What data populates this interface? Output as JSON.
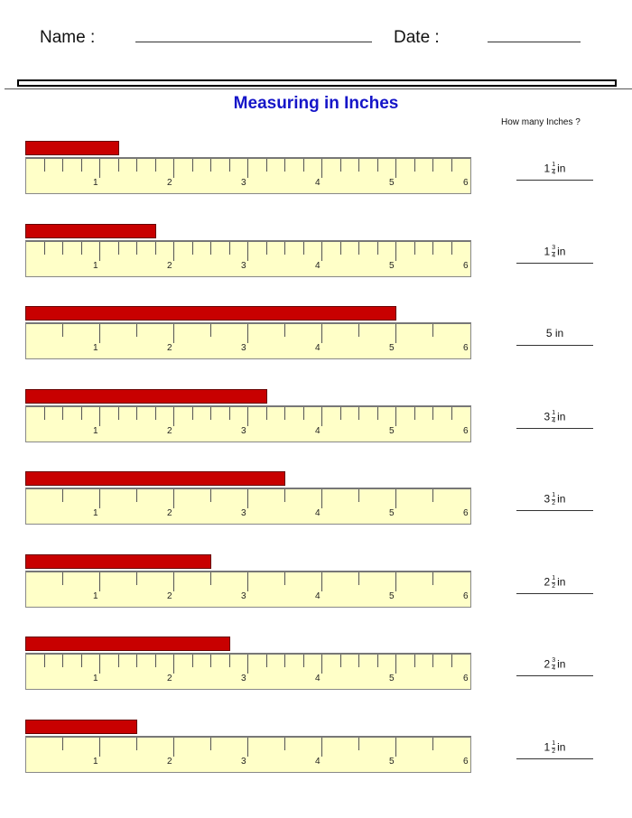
{
  "header": {
    "name_label": "Name :",
    "date_label": "Date :"
  },
  "title": "Measuring in Inches",
  "question": "How many Inches ?",
  "unit": "in",
  "ruler_numbers": [
    "1",
    "2",
    "3",
    "4",
    "5",
    "6"
  ],
  "colors": {
    "bar": "#c80000",
    "ruler": "#ffffc8",
    "title": "#1515c8"
  },
  "rows": [
    {
      "length_in": 1.25,
      "ticks": "quarter",
      "whole": "1",
      "num": "1",
      "den": "4"
    },
    {
      "length_in": 1.75,
      "ticks": "quarter",
      "whole": "1",
      "num": "3",
      "den": "4"
    },
    {
      "length_in": 5,
      "ticks": "half",
      "whole": "5",
      "num": "",
      "den": ""
    },
    {
      "length_in": 3.25,
      "ticks": "quarter",
      "whole": "3",
      "num": "1",
      "den": "4"
    },
    {
      "length_in": 3.5,
      "ticks": "half",
      "whole": "3",
      "num": "1",
      "den": "2"
    },
    {
      "length_in": 2.5,
      "ticks": "half",
      "whole": "2",
      "num": "1",
      "den": "2"
    },
    {
      "length_in": 2.75,
      "ticks": "quarter",
      "whole": "2",
      "num": "3",
      "den": "4"
    },
    {
      "length_in": 1.5,
      "ticks": "half",
      "whole": "1",
      "num": "1",
      "den": "2"
    }
  ]
}
